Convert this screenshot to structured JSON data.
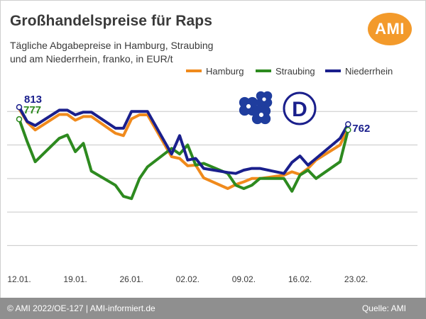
{
  "header": {
    "title": "Großhandelspreise für Raps",
    "subtitle_line1": "Tägliche Abgabepreise in Hamburg, Straubing",
    "subtitle_line2": "und am Niederrhein, franko, in EUR/t",
    "logo_text": "AMI",
    "logo_color": "#f39a2b"
  },
  "footer": {
    "left": "© AMI 2022/OE-127 | AMI-informiert.de",
    "right": "Quelle: AMI"
  },
  "emblem": {
    "flower_icon": "rapeseed-flower-icon",
    "flower_color": "#1f3d9e",
    "letter": "D"
  },
  "chart_data": {
    "type": "line",
    "x": [
      "12.01.",
      "13.01.",
      "14.01.",
      "17.01.",
      "18.01.",
      "19.01.",
      "20.01.",
      "21.01.",
      "24.01.",
      "25.01.",
      "26.01.",
      "27.01.",
      "28.01.",
      "31.01.",
      "01.02.",
      "02.02.",
      "03.02.",
      "04.02.",
      "07.02.",
      "08.02.",
      "09.02.",
      "10.02.",
      "11.02.",
      "14.02.",
      "15.02.",
      "16.02.",
      "17.02.",
      "18.02.",
      "21.02.",
      "22.02."
    ],
    "xticks": [
      "12.01.",
      "19.01.",
      "26.01.",
      "02.02.",
      "09.02.",
      "16.02.",
      "23.02."
    ],
    "ylim": [
      350,
      900
    ],
    "grid": "horizontal",
    "legend_position": "top-right",
    "series": [
      {
        "name": "Hamburg",
        "color": "#f08a1c",
        "values": [
          808,
          768,
          745,
          791,
          791,
          774,
          785,
          785,
          735,
          728,
          778,
          790,
          790,
          665,
          660,
          638,
          640,
          602,
          570,
          582,
          590,
          600,
          600,
          610,
          620,
          612,
          630,
          655,
          700,
          750
        ]
      },
      {
        "name": "Straubing",
        "color": "#2d8a1f",
        "values": [
          777,
          710,
          650,
          720,
          730,
          680,
          705,
          622,
          580,
          547,
          540,
          600,
          635,
          690,
          673,
          700,
          640,
          645,
          615,
          580,
          570,
          580,
          600,
          600,
          562,
          610,
          625,
          600,
          650,
          745
        ]
      },
      {
        "name": "Niederrhein",
        "color": "#1a1f8c",
        "values": [
          813,
          770,
          758,
          804,
          804,
          790,
          798,
          798,
          750,
          750,
          800,
          800,
          800,
          673,
          728,
          655,
          660,
          630,
          618,
          615,
          625,
          630,
          630,
          615,
          648,
          667,
          640,
          660,
          720,
          762
        ]
      }
    ],
    "labels": [
      {
        "series": "Niederrhein",
        "text": "813"
      },
      {
        "series": "Straubing",
        "text": "777"
      },
      {
        "series": "Niederrhein",
        "text": "762"
      }
    ]
  }
}
